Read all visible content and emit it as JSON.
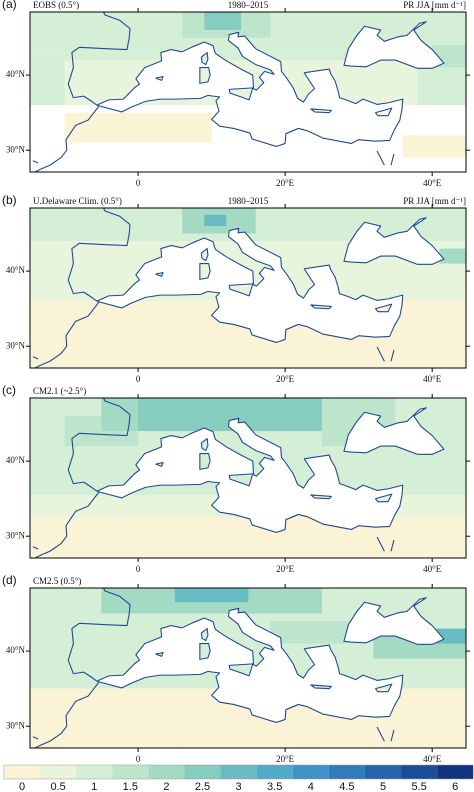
{
  "panels": [
    {
      "tag": "(a)",
      "source": "EOBS (0.5°)",
      "period": "1980–2015",
      "variable": "PR JJA [mm d⁻¹]"
    },
    {
      "tag": "(b)",
      "source": "U.Delaware Clim. (0.5°)",
      "period": "1980–2015",
      "variable": "PR JJA [mm d⁻¹]"
    },
    {
      "tag": "(c)",
      "source": "CM2.1 (~2.5°)"
    },
    {
      "tag": "(d)",
      "source": "CM2.5 (0.5°)"
    }
  ],
  "lon_range": [
    -14.7,
    44.6
  ],
  "lat_range": [
    27.1,
    48.4
  ],
  "lat_ticks": [
    {
      "value": 40,
      "label": "40°N"
    },
    {
      "value": 30,
      "label": "30°N"
    }
  ],
  "lon_ticks": [
    0,
    {
      "value": 20,
      "label": "20°E"
    },
    {
      "value": 40,
      "label": "40°E"
    }
  ],
  "colorbar": {
    "levels": [
      0,
      0.5,
      1,
      1.5,
      2,
      2.5,
      3,
      3.5,
      4,
      4.5,
      5,
      5.5,
      6
    ],
    "colors": [
      "#fbf3d6",
      "#e9f4dc",
      "#d5eed6",
      "#bde5cc",
      "#a2dac4",
      "#86cdc0",
      "#69bdc2",
      "#52aac9",
      "#3f93c6",
      "#317bbb",
      "#2664ab",
      "#1c4d99",
      "#12347f"
    ]
  }
}
